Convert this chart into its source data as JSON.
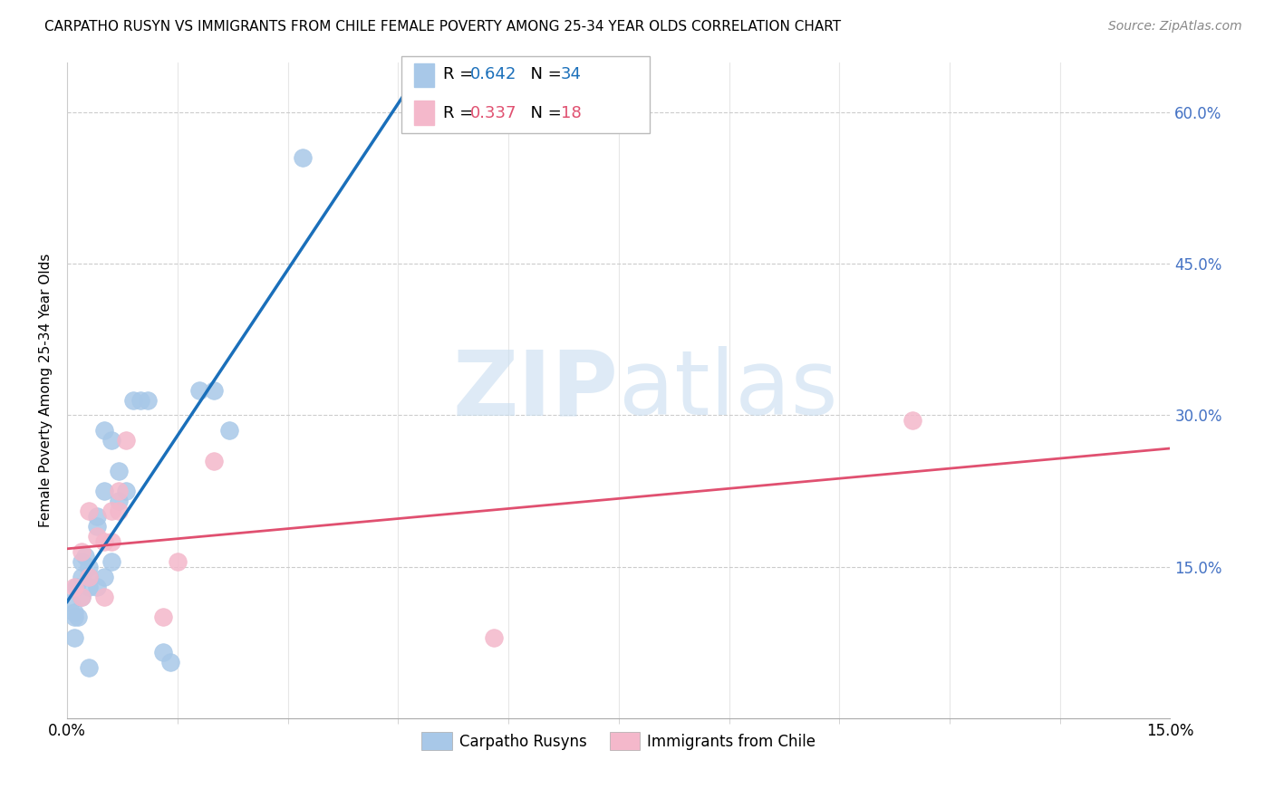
{
  "title": "CARPATHO RUSYN VS IMMIGRANTS FROM CHILE FEMALE POVERTY AMONG 25-34 YEAR OLDS CORRELATION CHART",
  "source": "Source: ZipAtlas.com",
  "ylabel": "Female Poverty Among 25-34 Year Olds",
  "ylabel_right_ticks": [
    "15.0%",
    "30.0%",
    "45.0%",
    "60.0%"
  ],
  "ylabel_right_vals": [
    0.15,
    0.3,
    0.45,
    0.6
  ],
  "legend1_R": "0.642",
  "legend1_N": "34",
  "legend2_R": "0.337",
  "legend2_N": "18",
  "blue_color": "#a8c8e8",
  "pink_color": "#f4b8cb",
  "blue_line_color": "#1a6fba",
  "pink_line_color": "#e05070",
  "xmin": 0.0,
  "xmax": 0.15,
  "ymin": 0.0,
  "ymax": 0.65,
  "blue_x": [
    0.0005,
    0.001,
    0.001,
    0.001,
    0.0012,
    0.0015,
    0.002,
    0.002,
    0.002,
    0.0025,
    0.003,
    0.003,
    0.003,
    0.003,
    0.004,
    0.004,
    0.004,
    0.005,
    0.005,
    0.005,
    0.006,
    0.006,
    0.007,
    0.007,
    0.008,
    0.009,
    0.01,
    0.011,
    0.013,
    0.014,
    0.018,
    0.02,
    0.022,
    0.032
  ],
  "blue_y": [
    0.115,
    0.08,
    0.1,
    0.105,
    0.13,
    0.1,
    0.12,
    0.14,
    0.155,
    0.16,
    0.05,
    0.13,
    0.14,
    0.15,
    0.13,
    0.19,
    0.2,
    0.14,
    0.225,
    0.285,
    0.155,
    0.275,
    0.215,
    0.245,
    0.225,
    0.315,
    0.315,
    0.315,
    0.065,
    0.055,
    0.325,
    0.325,
    0.285,
    0.555
  ],
  "pink_x": [
    0.001,
    0.002,
    0.002,
    0.003,
    0.003,
    0.004,
    0.005,
    0.005,
    0.006,
    0.006,
    0.007,
    0.007,
    0.008,
    0.013,
    0.015,
    0.02,
    0.058,
    0.115
  ],
  "pink_y": [
    0.13,
    0.12,
    0.165,
    0.14,
    0.205,
    0.18,
    0.12,
    0.175,
    0.175,
    0.205,
    0.205,
    0.225,
    0.275,
    0.1,
    0.155,
    0.255,
    0.08,
    0.295
  ]
}
